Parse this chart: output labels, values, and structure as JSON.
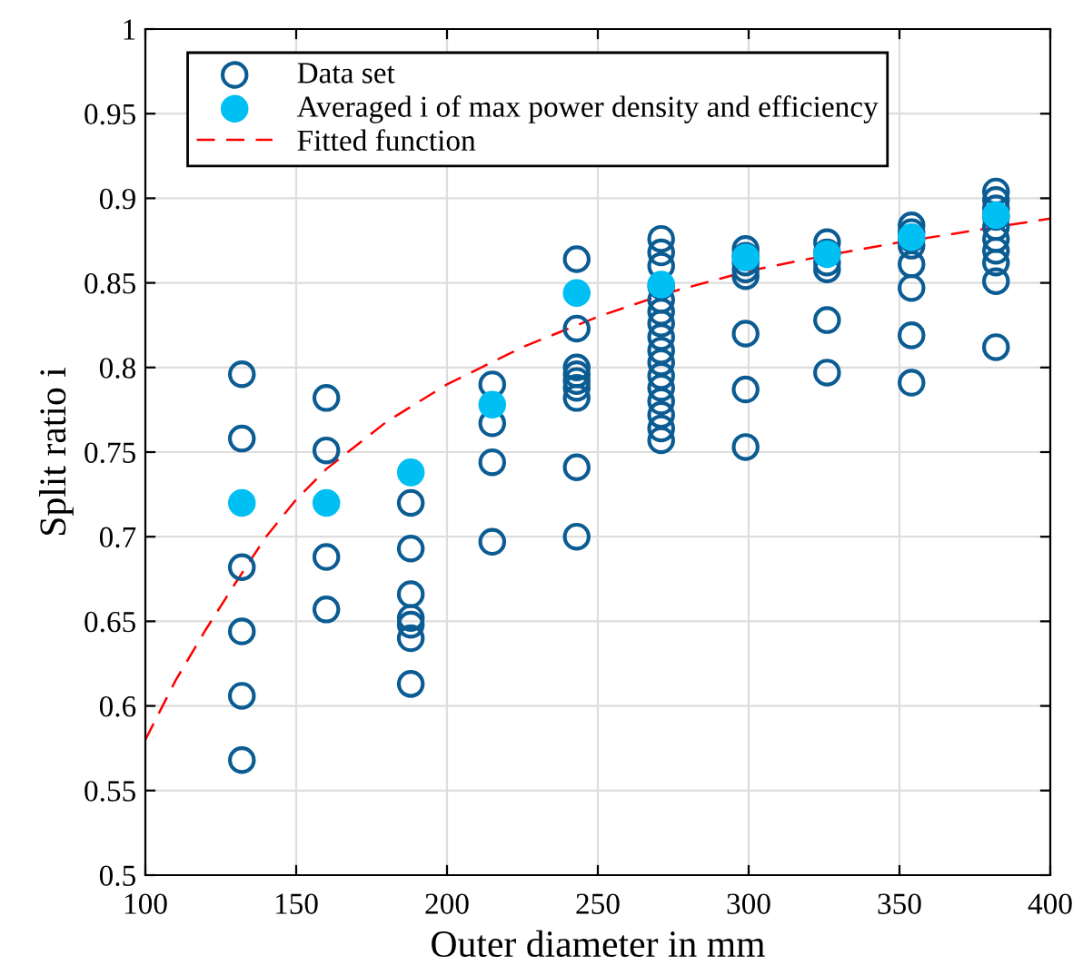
{
  "chart_data": {
    "type": "scatter",
    "xlabel": "Outer diameter in mm",
    "ylabel": "Split ratio i",
    "series": [
      {
        "name": "Data set",
        "color": "#0b5c93",
        "marker": "circle",
        "x": [
          132,
          132,
          132,
          132,
          132,
          132,
          160,
          160,
          160,
          160,
          188,
          188,
          188,
          188,
          188,
          188,
          188,
          215,
          215,
          215,
          215,
          243,
          243,
          243,
          243,
          243,
          243,
          243,
          243,
          243,
          271,
          271,
          271,
          271,
          271,
          271,
          271,
          271,
          271,
          271,
          271,
          271,
          271,
          271,
          271,
          271,
          299,
          299,
          299,
          299,
          299,
          299,
          299,
          299,
          326,
          326,
          326,
          326,
          326,
          326,
          354,
          354,
          354,
          354,
          354,
          354,
          354,
          354,
          382,
          382,
          382,
          382,
          382,
          382,
          382,
          382,
          382,
          382
        ],
        "values": [
          0.796,
          0.758,
          0.682,
          0.644,
          0.606,
          0.568,
          0.782,
          0.751,
          0.688,
          0.657,
          0.72,
          0.693,
          0.666,
          0.652,
          0.648,
          0.64,
          0.613,
          0.79,
          0.767,
          0.744,
          0.697,
          0.864,
          0.823,
          0.8,
          0.796,
          0.792,
          0.788,
          0.782,
          0.741,
          0.7,
          0.876,
          0.868,
          0.86,
          0.848,
          0.84,
          0.833,
          0.826,
          0.818,
          0.81,
          0.803,
          0.795,
          0.788,
          0.78,
          0.772,
          0.764,
          0.757,
          0.87,
          0.866,
          0.862,
          0.858,
          0.854,
          0.82,
          0.787,
          0.753,
          0.874,
          0.868,
          0.862,
          0.858,
          0.828,
          0.797,
          0.884,
          0.88,
          0.876,
          0.872,
          0.861,
          0.847,
          0.819,
          0.791,
          0.904,
          0.899,
          0.894,
          0.889,
          0.883,
          0.876,
          0.869,
          0.862,
          0.851,
          0.812
        ]
      },
      {
        "name": "Averaged i of max power density and efficiency",
        "color": "#00bff3",
        "marker": "circle",
        "x": [
          132,
          160,
          188,
          215,
          243,
          271,
          299,
          326,
          354,
          382
        ],
        "values": [
          0.72,
          0.72,
          0.738,
          0.778,
          0.844,
          0.849,
          0.865,
          0.867,
          0.877,
          0.89
        ]
      },
      {
        "name": "Fitted function",
        "type": "line",
        "color": "#ff0000",
        "line_style": "dashed",
        "marker": "none",
        "x": [
          100,
          110,
          120,
          130,
          140,
          150,
          160,
          180,
          200,
          225,
          250,
          275,
          300,
          325,
          350,
          375,
          400
        ],
        "values": [
          0.58,
          0.615,
          0.645,
          0.673,
          0.7,
          0.722,
          0.74,
          0.768,
          0.79,
          0.812,
          0.83,
          0.845,
          0.857,
          0.866,
          0.874,
          0.881,
          0.888
        ]
      }
    ],
    "xlim": [
      100,
      400
    ],
    "xticks": [
      100,
      150,
      200,
      250,
      300,
      350,
      400
    ],
    "ylim": [
      0.5,
      1
    ],
    "yticks": [
      0.5,
      0.55,
      0.6,
      0.65,
      0.7,
      0.75,
      0.8,
      0.85,
      0.9,
      0.95,
      1
    ],
    "grid": true,
    "legend": "top left"
  }
}
